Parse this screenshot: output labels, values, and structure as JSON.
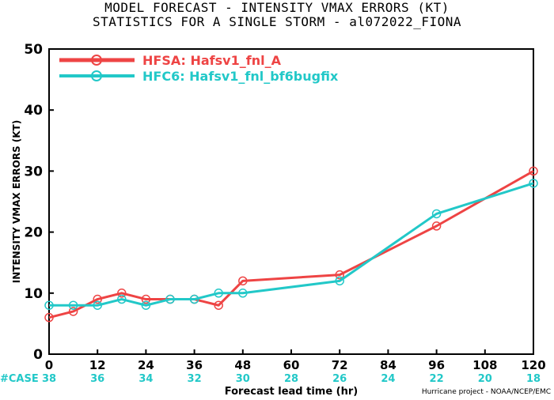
{
  "header": {
    "title_line1": "MODEL FORECAST - INTENSITY VMAX ERRORS (KT)",
    "title_line2": "STATISTICS FOR A SINGLE STORM - al072022_FIONA"
  },
  "footer": {
    "credit": "Hurricane project - NOAA/NCEP/EMC"
  },
  "chart_data": {
    "type": "line",
    "xlabel": "Forecast lead time (hr)",
    "ylabel": "INTENSITY VMAX ERRORS (KT)",
    "xlim": [
      0,
      120
    ],
    "ylim": [
      0,
      50
    ],
    "xticks": [
      0,
      12,
      24,
      36,
      48,
      60,
      72,
      84,
      96,
      108,
      120
    ],
    "yticks": [
      0,
      10,
      20,
      30,
      40,
      50
    ],
    "grid": false,
    "legend_position": "top-left",
    "case_label": "#CASE",
    "case_hours": [
      0,
      12,
      24,
      36,
      48,
      60,
      72,
      84,
      96,
      108,
      120
    ],
    "case_counts": [
      38,
      36,
      34,
      32,
      30,
      28,
      26,
      24,
      22,
      20,
      18
    ],
    "series": [
      {
        "name": "HFSA: Hafsv1_fnl_A",
        "color": "#ee4444",
        "x": [
          0,
          6,
          12,
          18,
          24,
          30,
          36,
          42,
          48,
          72,
          96,
          120
        ],
        "y": [
          6,
          7,
          9,
          10,
          9,
          9,
          9,
          8,
          12,
          13,
          21,
          30
        ]
      },
      {
        "name": "HFC6: Hafsv1_fnl_bf6bugfix",
        "color": "#22c8c8",
        "x": [
          0,
          6,
          12,
          18,
          24,
          30,
          36,
          42,
          48,
          72,
          96,
          120
        ],
        "y": [
          8,
          8,
          8,
          9,
          8,
          9,
          9,
          10,
          10,
          12,
          23,
          28
        ]
      }
    ]
  }
}
